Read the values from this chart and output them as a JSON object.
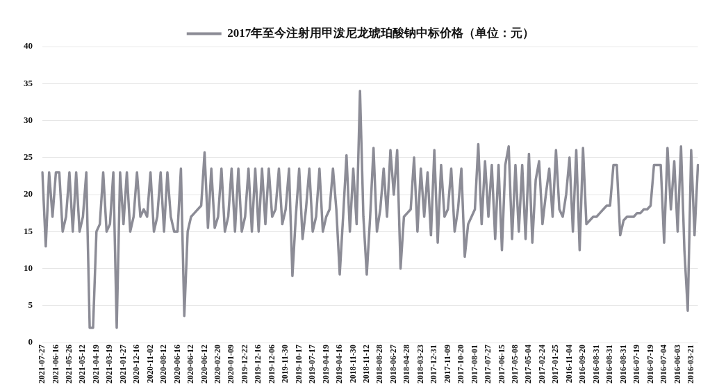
{
  "chart_data": {
    "type": "line",
    "categories": [
      "2021-07-27",
      null,
      null,
      null,
      "2021-06-16",
      null,
      null,
      null,
      "2021-05-26",
      null,
      null,
      null,
      "2021-05-12",
      null,
      null,
      null,
      "2021-04-19",
      null,
      null,
      null,
      "2021-03-19",
      null,
      null,
      null,
      "2021-01-27",
      null,
      null,
      null,
      "2020-12-16",
      null,
      null,
      null,
      "2020-11-02",
      null,
      null,
      null,
      "2020-08-12",
      null,
      null,
      null,
      "2020-06-16",
      null,
      null,
      null,
      "2020-06-12",
      null,
      null,
      null,
      "2020-06-12",
      null,
      null,
      null,
      "2020-02-20",
      null,
      null,
      null,
      "2020-01-09",
      null,
      null,
      null,
      "2019-12-22",
      null,
      null,
      null,
      "2019-12-16",
      null,
      null,
      null,
      "2019-12-06",
      null,
      null,
      null,
      "2019-11-30",
      null,
      null,
      null,
      "2019-10-17",
      null,
      null,
      null,
      "2019-07-17",
      null,
      null,
      null,
      "2019-04-19",
      null,
      null,
      null,
      "2019-04-16",
      null,
      null,
      null,
      "2018-11-30",
      null,
      null,
      null,
      "2018-11-12",
      null,
      null,
      null,
      "2018-08-28",
      null,
      null,
      null,
      "2018-06-27",
      null,
      null,
      null,
      "2018-04-28",
      null,
      null,
      null,
      "2018-03-23",
      null,
      null,
      null,
      "2017-12-31",
      null,
      null,
      null,
      "2017-11-09",
      null,
      null,
      null,
      "2017-10-20",
      null,
      null,
      null,
      "2017-08-01",
      null,
      null,
      null,
      "2017-07-27",
      null,
      null,
      null,
      "2017-06-15",
      null,
      null,
      null,
      "2017-05-08",
      null,
      null,
      null,
      "2017-05-04",
      null,
      null,
      null,
      "2017-02-24",
      null,
      null,
      null,
      "2017-01-25",
      null,
      null,
      null,
      "2016-11-04",
      null,
      null,
      null,
      "2016-09-20",
      null,
      null,
      null,
      "2016-08-31",
      null,
      null,
      null,
      "2016-08-31",
      null,
      null,
      null,
      "2016-08-31",
      null,
      null,
      null,
      "2016-07-19",
      null,
      null,
      null,
      "2016-07-19",
      null,
      null,
      null,
      "2016-07-04",
      null,
      null,
      null,
      "2016-06-03",
      null,
      null,
      null,
      "2016-03-21",
      null,
      null
    ],
    "series": [
      {
        "name": "2017年至今注射用甲泼尼龙琥珀酸钠中标价格（单位：元）",
        "color": "#8c8c96",
        "values": [
          23,
          13,
          23,
          17,
          23,
          23,
          15,
          17,
          23,
          15,
          23,
          15,
          17,
          23,
          2,
          2,
          15,
          16,
          23,
          15,
          16,
          23,
          2,
          23,
          16,
          23,
          15,
          17,
          23,
          17,
          18,
          17,
          23,
          15,
          17,
          23,
          15,
          23,
          17,
          15,
          15,
          23.5,
          3.6,
          15,
          17,
          17.5,
          18,
          18.5,
          25.7,
          15.5,
          23.5,
          15.5,
          17,
          23.5,
          15,
          17,
          23.5,
          15,
          23.5,
          15,
          17,
          23.5,
          15,
          23.5,
          15,
          23.5,
          16,
          23.5,
          17,
          18,
          23.5,
          16,
          18,
          23.5,
          9,
          17,
          23.5,
          14,
          18,
          23.5,
          15,
          17,
          23.5,
          15,
          17,
          18,
          23.5,
          18,
          9.2,
          17,
          25.3,
          15,
          23.5,
          16,
          34,
          17,
          9.2,
          17,
          26.3,
          15,
          18,
          23.5,
          17,
          26,
          20,
          26,
          10,
          17,
          17.5,
          18,
          25,
          15,
          23.5,
          17,
          23,
          14.5,
          26,
          13.5,
          24,
          17,
          18,
          23.5,
          15,
          18,
          23.5,
          11.6,
          16,
          17,
          18,
          26.8,
          16,
          24.5,
          17,
          24,
          14,
          24,
          12.5,
          24,
          26.5,
          14,
          24,
          15,
          24,
          14,
          25.5,
          13.5,
          22,
          24.5,
          16,
          20,
          23.5,
          17,
          26,
          18,
          17,
          20,
          25,
          15,
          26,
          12.5,
          26.3,
          16,
          16.5,
          17,
          17,
          17.5,
          18,
          18.5,
          18.5,
          24,
          24,
          14.5,
          16.5,
          17,
          17,
          17,
          17.5,
          17.5,
          18,
          18,
          18.5,
          24,
          24,
          24,
          13.5,
          26.3,
          18,
          24.5,
          15,
          26.5,
          12.5,
          4.3,
          26,
          14.5,
          24
        ]
      }
    ],
    "ylim": [
      0,
      40
    ],
    "yticks": [
      0,
      5,
      10,
      15,
      20,
      25,
      30,
      35,
      40
    ],
    "grid": "y",
    "legend": "top",
    "marker": "none",
    "line_style": "solid"
  }
}
